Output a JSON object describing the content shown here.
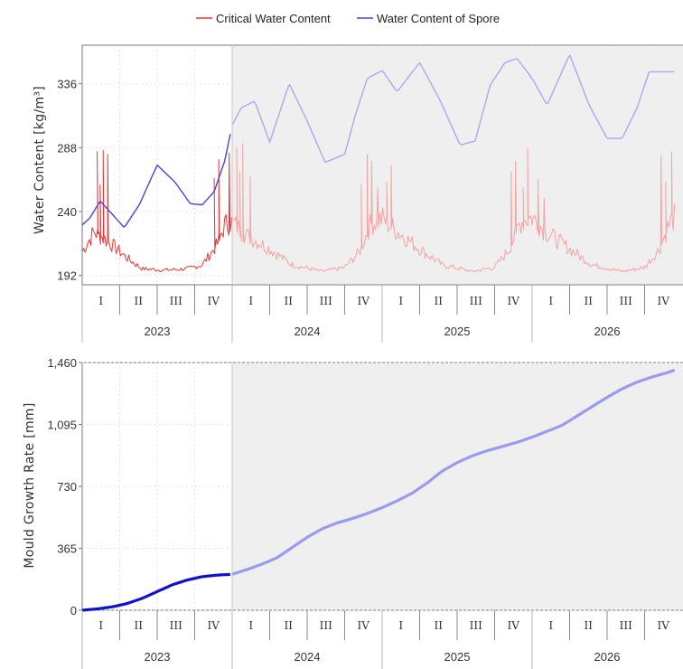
{
  "colors": {
    "critical": "#ee3333",
    "critical_faded": "#f5a3a3",
    "spore": "#4444dd",
    "spore_faded": "#a9a9f0",
    "growth": "#1111cc",
    "growth_faded": "#9a9aee",
    "plot_shade": "#efefef",
    "grid": "#e2e2e2",
    "frame": "#777777"
  },
  "legend": {
    "items": [
      {
        "label": "Critical Water Content",
        "color": "#ee3333"
      },
      {
        "label": "Water Content of Spore",
        "color": "#4444dd"
      }
    ]
  },
  "time_axis": {
    "years": [
      "2023",
      "2024",
      "2025",
      "2026"
    ],
    "quarters": [
      "I",
      "II",
      "III",
      "IV"
    ]
  },
  "chart_data": [
    {
      "type": "line",
      "title": "",
      "xlabel": "",
      "ylabel": "Water Content [kg/m³]",
      "ylim": [
        185,
        365
      ],
      "yticks": [
        192,
        240,
        288,
        336
      ],
      "ytick_labels": [
        "192",
        "240",
        "288",
        "336"
      ],
      "x_unit": "years since start of 2023",
      "xlim": [
        0,
        3.95
      ],
      "highlight_until": 1.0,
      "legend": "top-center",
      "grid": true,
      "series": [
        {
          "name": "Water Content of Spore",
          "x": [
            0,
            0.05,
            0.12,
            0.2,
            0.28,
            0.38,
            0.5,
            0.62,
            0.72,
            0.8,
            0.88,
            0.95,
            1.0,
            1.06,
            1.15,
            1.25,
            1.38,
            1.5,
            1.62,
            1.75,
            1.82,
            1.9,
            2.0,
            2.1,
            2.25,
            2.38,
            2.52,
            2.62,
            2.72,
            2.82,
            2.9,
            3.0,
            3.1,
            3.25,
            3.38,
            3.5,
            3.6,
            3.7,
            3.78,
            3.86,
            3.95
          ],
          "values": [
            230,
            235,
            248,
            238,
            228,
            245,
            275,
            262,
            246,
            245,
            255,
            278,
            305,
            318,
            323,
            292,
            336,
            308,
            277,
            283,
            312,
            340,
            346,
            330,
            352,
            325,
            290,
            293,
            335,
            352,
            355,
            340,
            320,
            358,
            320,
            295,
            295,
            318,
            345,
            345,
            345
          ]
        },
        {
          "name": "Critical Water Content",
          "style": "noisy seasonal baseline with spikes",
          "x": [
            0,
            0.08,
            0.2,
            0.3,
            0.4,
            0.55,
            0.7,
            0.8,
            0.9,
            0.95,
            1.0,
            1.1,
            1.25,
            1.4,
            1.6,
            1.75,
            1.85,
            1.92,
            2.0,
            2.1,
            2.25,
            2.4,
            2.6,
            2.75,
            2.85,
            2.92,
            3.0,
            3.1,
            3.25,
            3.4,
            3.6,
            3.75,
            3.85,
            3.92,
            3.95
          ],
          "values": [
            210,
            225,
            215,
            205,
            197,
            196,
            197,
            200,
            215,
            230,
            232,
            222,
            212,
            200,
            195,
            198,
            210,
            230,
            235,
            225,
            212,
            200,
            195,
            198,
            212,
            232,
            236,
            224,
            212,
            200,
            195,
            198,
            212,
            232,
            236
          ],
          "spikes": [
            {
              "x": 0.1,
              "value": 285
            },
            {
              "x": 0.12,
              "value": 260
            },
            {
              "x": 0.14,
              "value": 286
            },
            {
              "x": 0.17,
              "value": 283
            },
            {
              "x": 0.88,
              "value": 265
            },
            {
              "x": 0.91,
              "value": 279
            },
            {
              "x": 0.98,
              "value": 284
            },
            {
              "x": 1.03,
              "value": 288
            },
            {
              "x": 1.05,
              "value": 270
            },
            {
              "x": 1.07,
              "value": 291
            },
            {
              "x": 1.12,
              "value": 266
            },
            {
              "x": 1.86,
              "value": 260
            },
            {
              "x": 1.9,
              "value": 283
            },
            {
              "x": 1.93,
              "value": 278
            },
            {
              "x": 1.97,
              "value": 258
            },
            {
              "x": 2.03,
              "value": 262
            },
            {
              "x": 2.06,
              "value": 275
            },
            {
              "x": 2.86,
              "value": 270
            },
            {
              "x": 2.89,
              "value": 278
            },
            {
              "x": 2.94,
              "value": 258
            },
            {
              "x": 2.97,
              "value": 288
            },
            {
              "x": 3.04,
              "value": 264
            },
            {
              "x": 3.08,
              "value": 250
            },
            {
              "x": 3.86,
              "value": 282
            },
            {
              "x": 3.89,
              "value": 262
            },
            {
              "x": 3.93,
              "value": 285
            }
          ]
        }
      ]
    },
    {
      "type": "line",
      "title": "",
      "xlabel": "",
      "ylabel": "Mould Growth Rate [mm]",
      "ylim": [
        0,
        1460
      ],
      "yticks": [
        0,
        365,
        730,
        1095,
        1460
      ],
      "ytick_labels": [
        "0",
        "365",
        "730",
        "1,095",
        "1,460"
      ],
      "x_unit": "years since start of 2023",
      "xlim": [
        0,
        3.95
      ],
      "highlight_until": 1.0,
      "grid": true,
      "series": [
        {
          "name": "Mould Growth Rate",
          "x": [
            0,
            0.1,
            0.2,
            0.3,
            0.4,
            0.5,
            0.6,
            0.7,
            0.8,
            0.9,
            1.0,
            1.1,
            1.2,
            1.3,
            1.4,
            1.5,
            1.6,
            1.7,
            1.8,
            1.9,
            2.0,
            2.1,
            2.2,
            2.3,
            2.4,
            2.5,
            2.6,
            2.7,
            2.8,
            2.9,
            3.0,
            3.1,
            3.2,
            3.3,
            3.4,
            3.5,
            3.6,
            3.7,
            3.8,
            3.9,
            3.95
          ],
          "values": [
            0,
            8,
            20,
            40,
            70,
            110,
            150,
            178,
            198,
            207,
            212,
            240,
            272,
            310,
            370,
            430,
            480,
            515,
            540,
            570,
            605,
            645,
            690,
            750,
            820,
            870,
            910,
            940,
            965,
            990,
            1020,
            1055,
            1090,
            1145,
            1200,
            1255,
            1305,
            1345,
            1375,
            1400,
            1415
          ]
        }
      ]
    }
  ]
}
